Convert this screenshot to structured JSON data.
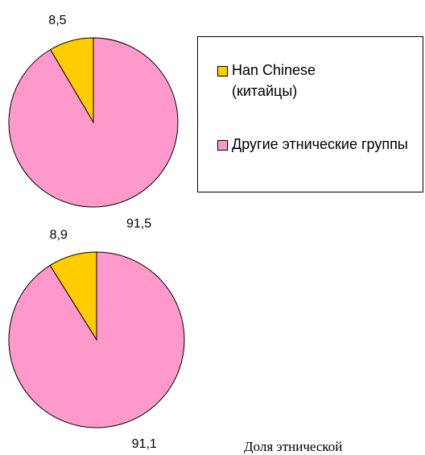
{
  "chart_data": [
    {
      "type": "pie",
      "values": [
        8.5,
        91.5
      ],
      "value_labels": [
        "8,5",
        "91,5"
      ]
    },
    {
      "type": "pie",
      "values": [
        8.9,
        91.1
      ],
      "value_labels": [
        "8,9",
        "91,1"
      ]
    }
  ],
  "legend": {
    "categories": [
      "Han Chinese (китайцы)",
      "Другие этнические группы"
    ],
    "colors": [
      "#FFCC00",
      "#FF99CC"
    ]
  },
  "caption": "Доля этнической"
}
